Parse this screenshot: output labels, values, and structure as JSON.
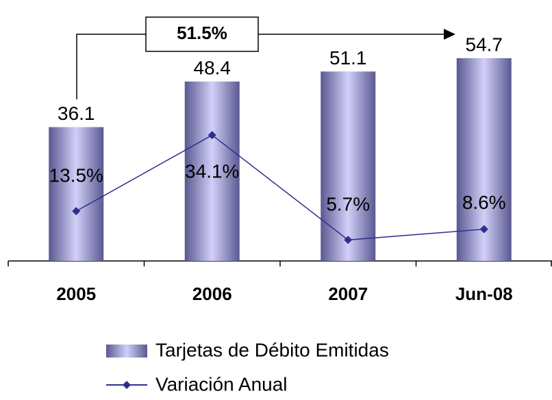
{
  "chart_data": {
    "type": "bar",
    "categories": [
      "2005",
      "2006",
      "2007",
      "Jun-08"
    ],
    "series": [
      {
        "name": "Tarjetas de Débito Emitidas",
        "type": "bar",
        "color": "#9d9ad8",
        "values": [
          36.1,
          48.4,
          51.1,
          54.7
        ]
      },
      {
        "name": "Variación Anual",
        "type": "line",
        "axis": "y2",
        "color": "#2e2e8f",
        "values": [
          13.5,
          34.1,
          5.7,
          8.6
        ],
        "value_labels": [
          "13.5%",
          "34.1%",
          "5.7%",
          "8.6%"
        ]
      }
    ],
    "ylim": [
      0,
      63
    ],
    "y2lim": [
      0,
      63.3
    ],
    "annotation": "51.5%",
    "legend": "bottom"
  }
}
